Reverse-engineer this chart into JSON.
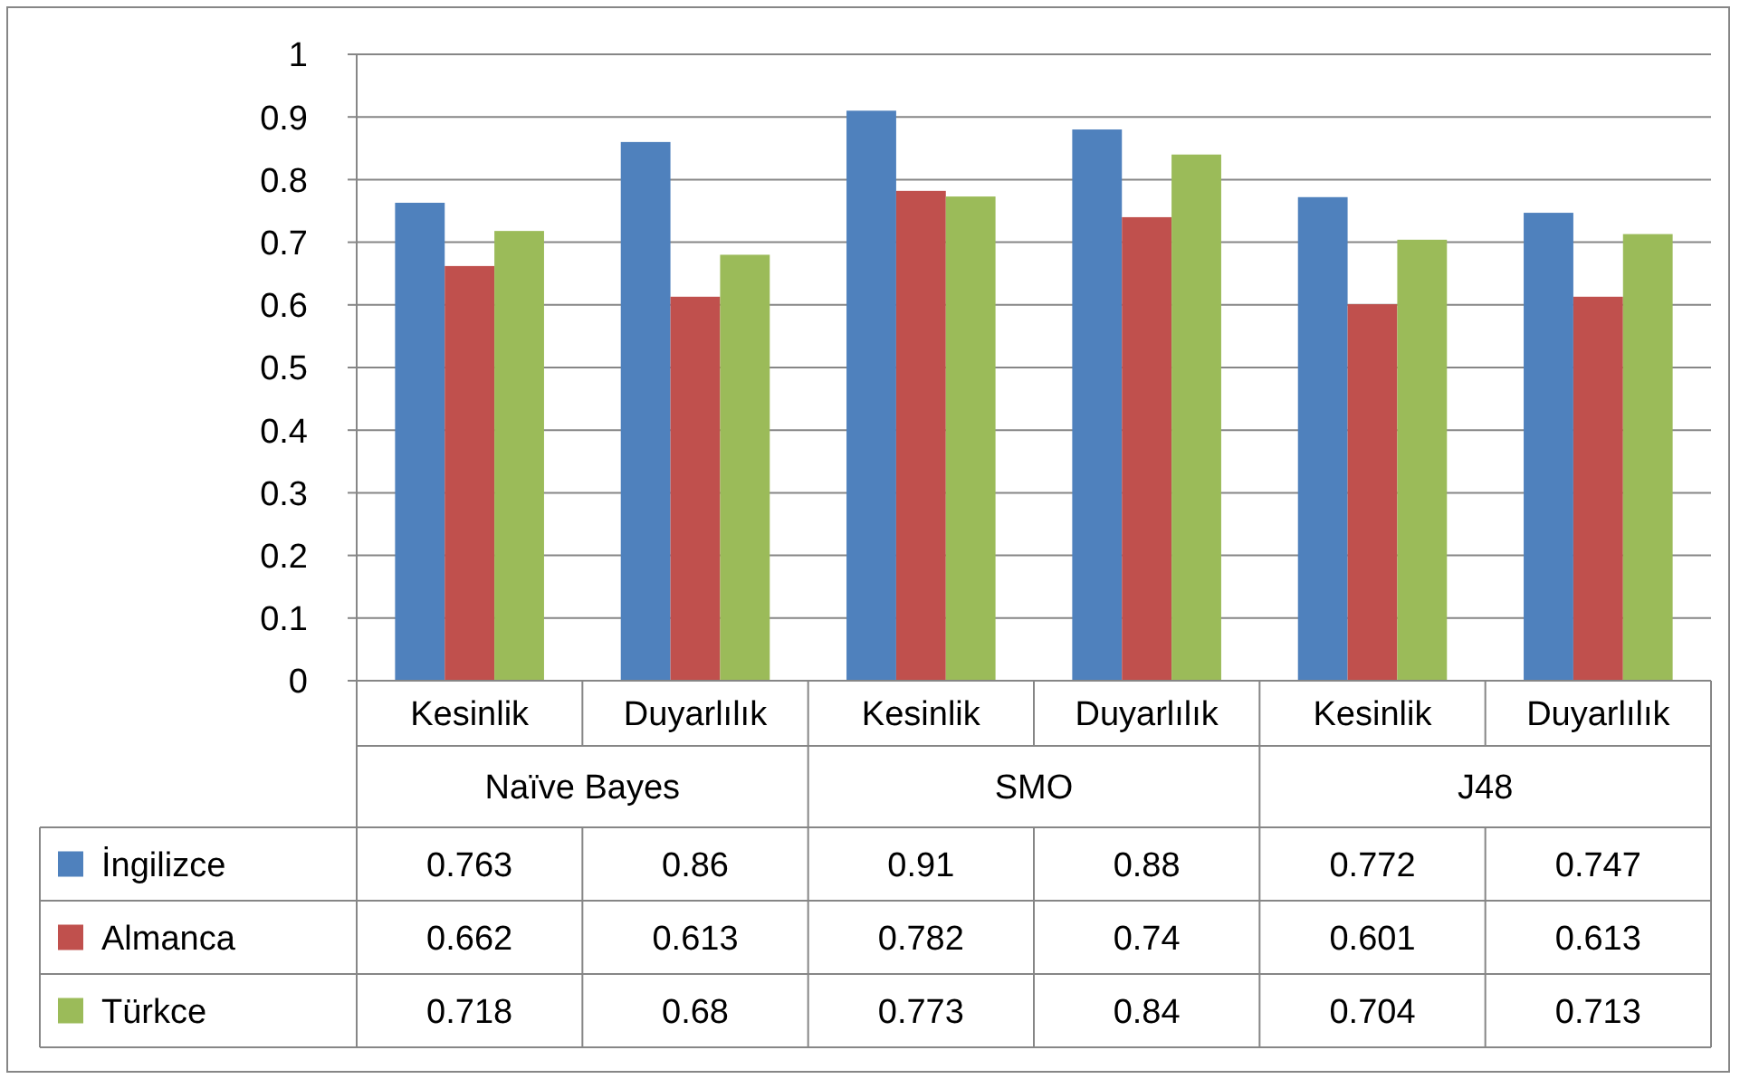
{
  "chart_data": {
    "type": "bar",
    "categories": [
      "Kesinlik",
      "Duyarlılık",
      "Kesinlik",
      "Duyarlılık",
      "Kesinlik",
      "Duyarlılık"
    ],
    "annotations": [
      "Naïve Bayes",
      "SMO",
      "J48"
    ],
    "series": [
      {
        "name": "İngilizce",
        "color": "#4f81bd",
        "values": [
          0.763,
          0.86,
          0.91,
          0.88,
          0.772,
          0.747
        ]
      },
      {
        "name": "Almanca",
        "color": "#c0504d",
        "values": [
          0.662,
          0.613,
          0.782,
          0.74,
          0.601,
          0.613
        ]
      },
      {
        "name": "Türkce",
        "color": "#9bbb59",
        "values": [
          0.718,
          0.68,
          0.773,
          0.84,
          0.704,
          0.713
        ]
      }
    ],
    "ylim": [
      0,
      1
    ],
    "yticks": [
      0,
      0.1,
      0.2,
      0.3,
      0.4,
      0.5,
      0.6,
      0.7,
      0.8,
      0.9,
      1
    ],
    "grid": "y",
    "legend": "bottom left",
    "data_labels": true
  }
}
